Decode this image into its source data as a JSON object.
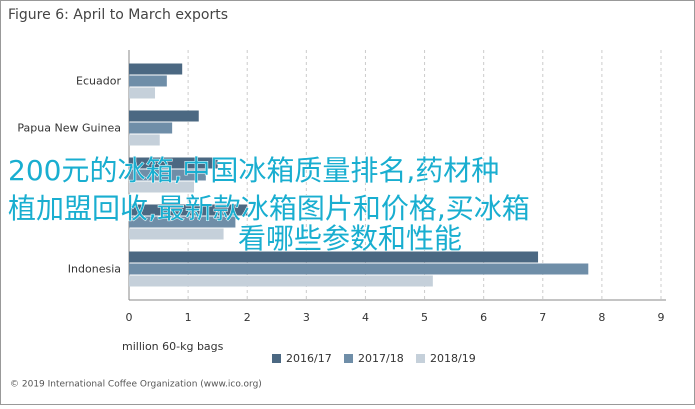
{
  "chart_data": {
    "type": "hbar",
    "title": "Figure 6: April to March exports",
    "categories": [
      "Ecuador",
      "Papua New Guinea",
      null,
      null,
      "Indonesia"
    ],
    "series": [
      {
        "name": "2016/17",
        "color": "#4b6882",
        "values": [
          0.9,
          1.18,
          1.5,
          2.0,
          6.92
        ]
      },
      {
        "name": "2017/18",
        "color": "#6f8ea8",
        "values": [
          0.64,
          0.73,
          1.3,
          1.8,
          7.77
        ]
      },
      {
        "name": "2018/19",
        "color": "#c5d0da",
        "values": [
          0.44,
          0.52,
          1.1,
          1.6,
          5.14
        ]
      }
    ],
    "xlim": [
      0,
      9
    ],
    "xticks": [
      0,
      1,
      2,
      3,
      4,
      5,
      6,
      7,
      8,
      9
    ],
    "grid": true,
    "xlabel": "million 60-kg bags",
    "legend": "bottom",
    "source": "© 2019 International Coffee Organization (www.ico.org)"
  },
  "overlay": {
    "lines": [
      "200元的冰箱,中国冰箱质量排名,药材种",
      "植加盟回收,最新款冰箱图片和价格,买冰箱",
      "看哪些参数和性能"
    ]
  }
}
